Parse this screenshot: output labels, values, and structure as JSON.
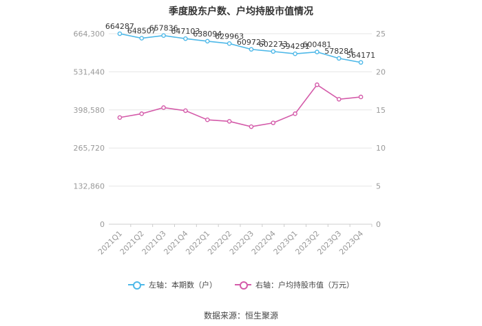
{
  "title": "季度股东户数、户均持股市值情况",
  "source": "数据来源：恒生聚源",
  "colors": {
    "left_series": "#4db8e8",
    "right_series": "#d45aa9",
    "grid": "#e6e6e6",
    "axis_text": "#999999",
    "label_text": "#333333"
  },
  "chart_data": {
    "type": "line",
    "title": "季度股东户数、户均持股市值情况",
    "categories": [
      "2021Q1",
      "2021Q2",
      "2021Q3",
      "2021Q4",
      "2022Q1",
      "2022Q2",
      "2022Q3",
      "2022Q4",
      "2023Q1",
      "2023Q2",
      "2023Q3",
      "2023Q4"
    ],
    "left_axis": {
      "ylim": [
        0,
        664300
      ],
      "ticks": [
        "0",
        "132,860",
        "265,720",
        "398,580",
        "531,440",
        "664,300"
      ],
      "tick_values": [
        0,
        132860,
        265720,
        398580,
        531440,
        664300
      ]
    },
    "right_axis": {
      "ylim": [
        0,
        25
      ],
      "ticks": [
        "0",
        "5",
        "10",
        "15",
        "20",
        "25"
      ],
      "tick_values": [
        0,
        5,
        10,
        15,
        20,
        25
      ]
    },
    "series": [
      {
        "name": "左轴：本期数（户）",
        "axis": "left",
        "values": [
          664287,
          648507,
          657836,
          647103,
          638094,
          629963,
          609723,
          602273,
          594291,
          600481,
          578284,
          564171
        ],
        "labels": [
          "664287",
          "648507",
          "657836",
          "647103",
          "638094",
          "629963",
          "609723",
          "602273",
          "594291",
          "600481",
          "578284",
          "564171"
        ]
      },
      {
        "name": "右轴：户均持股市值（万元）",
        "axis": "right",
        "values": [
          14.0,
          14.5,
          15.3,
          14.9,
          13.7,
          13.5,
          12.8,
          13.3,
          14.5,
          18.3,
          16.4,
          16.7
        ]
      }
    ],
    "grid": true,
    "legend_position": "bottom"
  }
}
